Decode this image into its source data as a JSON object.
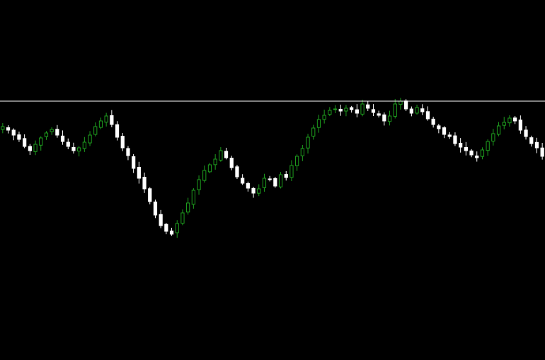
{
  "chart_data": {
    "type": "candlestick",
    "title": "",
    "xlabel": "",
    "ylabel": "",
    "ylim": [
      0,
      509
    ],
    "grid": false,
    "legend": "none",
    "background_color": "#000000",
    "bull_color": "#1e9e1e",
    "bear_color": "#ffffff",
    "level_line_color": "#ffffff",
    "horizontal_level": 366,
    "close_series": [
      330,
      325,
      318,
      312,
      302,
      296,
      305,
      314,
      321,
      326,
      318,
      309,
      302,
      296,
      300,
      308,
      318,
      330,
      338,
      345,
      333,
      315,
      300,
      289,
      271,
      257,
      242,
      224,
      205,
      190,
      182,
      178,
      193,
      208,
      222,
      240,
      255,
      268,
      276,
      284,
      296,
      286,
      272,
      259,
      250,
      243,
      236,
      242,
      257,
      255,
      246,
      262,
      258,
      275,
      288,
      299,
      315,
      328,
      340,
      346,
      353,
      355,
      352,
      356,
      354,
      349,
      362,
      356,
      350,
      346,
      338,
      345,
      362,
      366,
      355,
      349,
      357,
      351,
      341,
      333,
      327,
      319,
      316,
      306,
      301,
      296,
      290,
      286,
      297,
      309,
      320,
      331,
      336,
      342,
      338,
      325,
      316,
      306,
      300,
      288
    ]
  }
}
